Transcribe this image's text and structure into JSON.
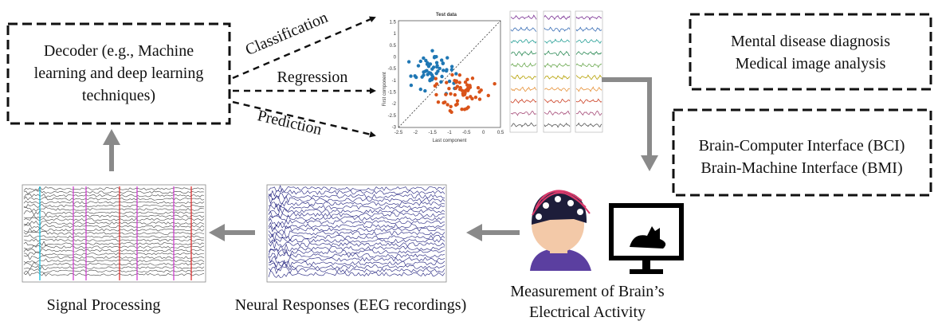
{
  "decoder": {
    "lines": [
      "Decoder (e.g., Machine",
      "learning and deep learning",
      "techniques)"
    ]
  },
  "tasks": [
    "Classification",
    "Regression",
    "Prediction"
  ],
  "scatter": {
    "title": "Test data",
    "y_label": "First component",
    "x_label": "Last component",
    "xticks": [
      "-2.5",
      "-2",
      "-1.5",
      "-1",
      "-0.5",
      "0",
      "0.5"
    ],
    "yticks": [
      "1.5",
      "1",
      "0.5",
      "0",
      "-0.5",
      "-1",
      "-1.5",
      "-2",
      "-2.5",
      "-3"
    ]
  },
  "applications": [
    {
      "lines": [
        "Mental disease diagnosis",
        "Medical image analysis"
      ]
    },
    {
      "lines": [
        "Brain-Computer Interface (BCI)",
        "Brain-Machine Interface (BMI)"
      ]
    }
  ],
  "measurement": {
    "lines": [
      "Measurement of Brain’s",
      "Electrical Activity"
    ]
  },
  "neural": {
    "label": "Neural Responses (EEG recordings)"
  },
  "signal": {
    "label": "Signal Processing"
  }
}
